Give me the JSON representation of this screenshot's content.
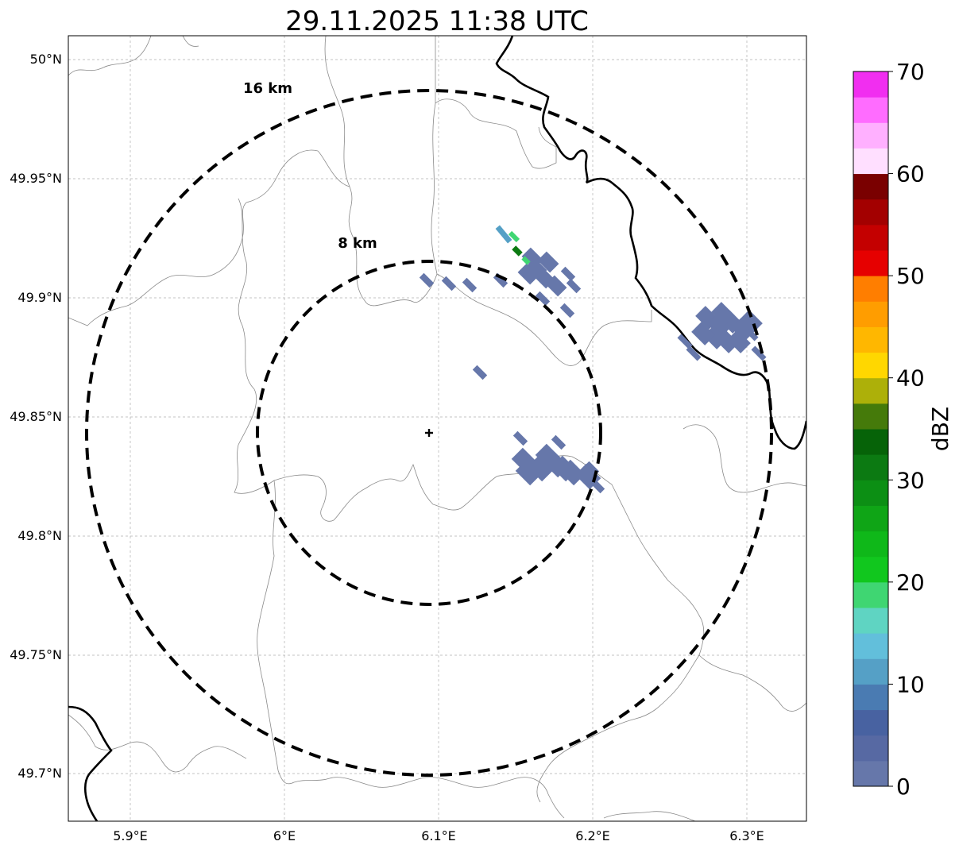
{
  "title": "29.11.2025 11:38 UTC",
  "map": {
    "longitude_ticks": [
      "5.9°E",
      "6°E",
      "6.1°E",
      "6.2°E",
      "6.3°E"
    ],
    "latitude_ticks": [
      "50°N",
      "49.95°N",
      "49.9°N",
      "49.85°N",
      "49.8°N",
      "49.75°N",
      "49.7°N"
    ],
    "range_rings": [
      {
        "label": "16 km",
        "radius_km": 16
      },
      {
        "label": "8 km",
        "radius_km": 8
      }
    ],
    "radar_site": {
      "lon": 6.096,
      "lat": 49.843
    }
  },
  "colorbar": {
    "label": "dBZ",
    "tick_labels": [
      "0",
      "10",
      "20",
      "30",
      "40",
      "50",
      "60",
      "70"
    ],
    "colors": [
      "#6677aa",
      "#5769a3",
      "#4862a1",
      "#4a7bb2",
      "#55a0c6",
      "#62bfdb",
      "#5fd4c2",
      "#3fd672",
      "#11c71e",
      "#0fb819",
      "#0fa516",
      "#0c8f14",
      "#0c7a12",
      "#066308",
      "#457a0a",
      "#adb009",
      "#ffd700",
      "#ffb700",
      "#ff9d00",
      "#ff7e00",
      "#e60000",
      "#c40000",
      "#a30000",
      "#7a0000",
      "#ffdfff",
      "#ffb0ff",
      "#ff6cff",
      "#f12ef0"
    ]
  },
  "colors": {
    "echo": "#6677aa",
    "green_light": "#3fd672",
    "green_dark": "#0c7a12",
    "cyan": "#55a0c6"
  }
}
